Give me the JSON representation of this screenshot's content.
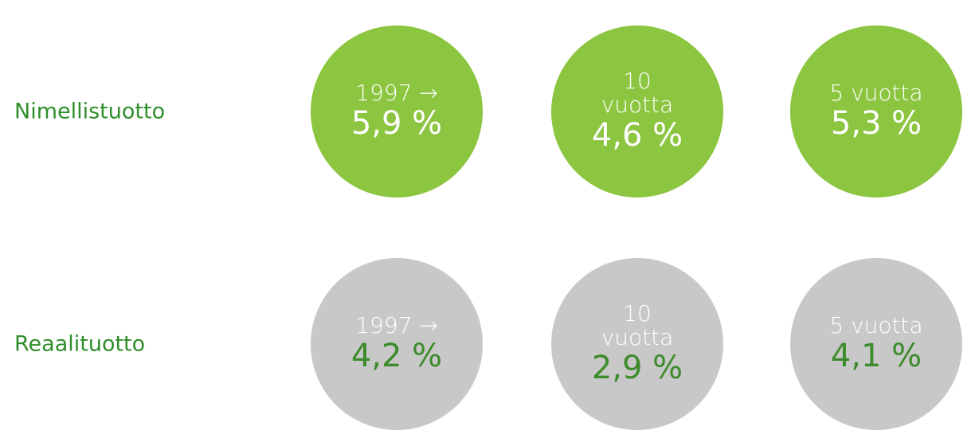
{
  "rows": [
    {
      "label": "Nimellistuotto",
      "circles": [
        {
          "period": [
            "1997 →"
          ],
          "value": "5,9 %"
        },
        {
          "period": [
            "10",
            "vuotta"
          ],
          "value": "4,6 %"
        },
        {
          "period": [
            "5 vuotta"
          ],
          "value": "5,3 %"
        }
      ]
    },
    {
      "label": "Reaalituotto",
      "circles": [
        {
          "period": [
            "1997 →"
          ],
          "value": "4,2 %"
        },
        {
          "period": [
            "10",
            "vuotta"
          ],
          "value": "2,9 %"
        },
        {
          "period": [
            "5 vuotta"
          ],
          "value": "4,1 %"
        }
      ]
    }
  ]
}
